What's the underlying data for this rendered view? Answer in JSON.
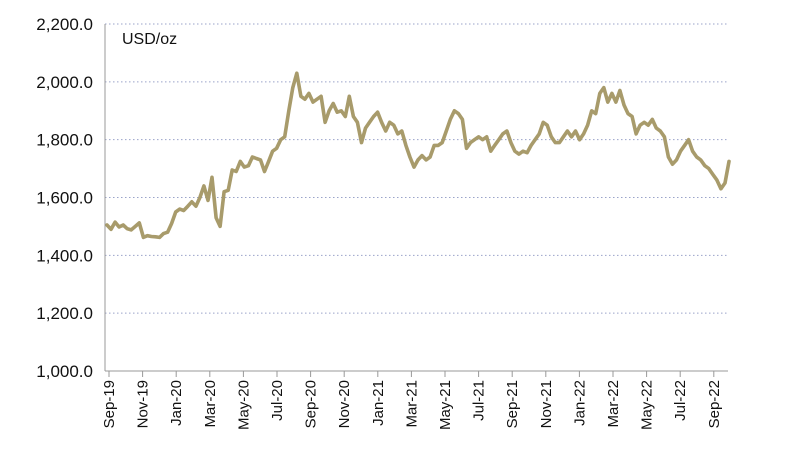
{
  "chart_data": {
    "type": "line",
    "unit_label": "USD/oz",
    "ylim": [
      1000,
      2200
    ],
    "y_ticks": [
      "1,000.0",
      "1,200.0",
      "1,400.0",
      "1,600.0",
      "1,800.0",
      "2,000.0",
      "2,200.0"
    ],
    "y_tick_values": [
      1000,
      1200,
      1400,
      1600,
      1800,
      2000,
      2200
    ],
    "x_tick_labels": [
      "Sep-19",
      "Nov-19",
      "Jan-20",
      "Mar-20",
      "May-20",
      "Jul-20",
      "Sep-20",
      "Nov-20",
      "Jan-21",
      "Mar-21",
      "May-21",
      "Jul-21",
      "Sep-21",
      "Nov-21",
      "Jan-22",
      "Mar-22",
      "May-22",
      "Jul-22",
      "Sep-22"
    ],
    "grid": "horizontal dotted",
    "legend": "none",
    "line_color": "#A89B6B",
    "series": [
      {
        "values": [
          1505,
          1490,
          1515,
          1498,
          1505,
          1492,
          1488,
          1500,
          1512,
          1462,
          1468,
          1465,
          1464,
          1462,
          1475,
          1480,
          1510,
          1550,
          1560,
          1555,
          1570,
          1585,
          1570,
          1600,
          1640,
          1590,
          1670,
          1530,
          1500,
          1620,
          1625,
          1695,
          1690,
          1725,
          1705,
          1710,
          1740,
          1735,
          1730,
          1690,
          1725,
          1760,
          1770,
          1800,
          1810,
          1900,
          1980,
          2030,
          1950,
          1940,
          1960,
          1930,
          1940,
          1950,
          1860,
          1900,
          1925,
          1895,
          1900,
          1880,
          1950,
          1880,
          1860,
          1790,
          1840,
          1860,
          1880,
          1895,
          1860,
          1830,
          1860,
          1850,
          1820,
          1830,
          1780,
          1740,
          1705,
          1730,
          1745,
          1730,
          1740,
          1780,
          1780,
          1790,
          1830,
          1870,
          1900,
          1890,
          1870,
          1770,
          1790,
          1800,
          1810,
          1800,
          1810,
          1760,
          1780,
          1800,
          1820,
          1830,
          1790,
          1760,
          1750,
          1760,
          1755,
          1780,
          1800,
          1820,
          1860,
          1850,
          1810,
          1790,
          1790,
          1810,
          1830,
          1810,
          1830,
          1800,
          1820,
          1850,
          1900,
          1890,
          1960,
          1980,
          1930,
          1960,
          1930,
          1970,
          1920,
          1890,
          1880,
          1820,
          1850,
          1860,
          1850,
          1870,
          1840,
          1830,
          1810,
          1740,
          1715,
          1730,
          1760,
          1780,
          1800,
          1760,
          1740,
          1730,
          1710,
          1700,
          1680,
          1660,
          1630,
          1650,
          1725
        ]
      }
    ]
  }
}
